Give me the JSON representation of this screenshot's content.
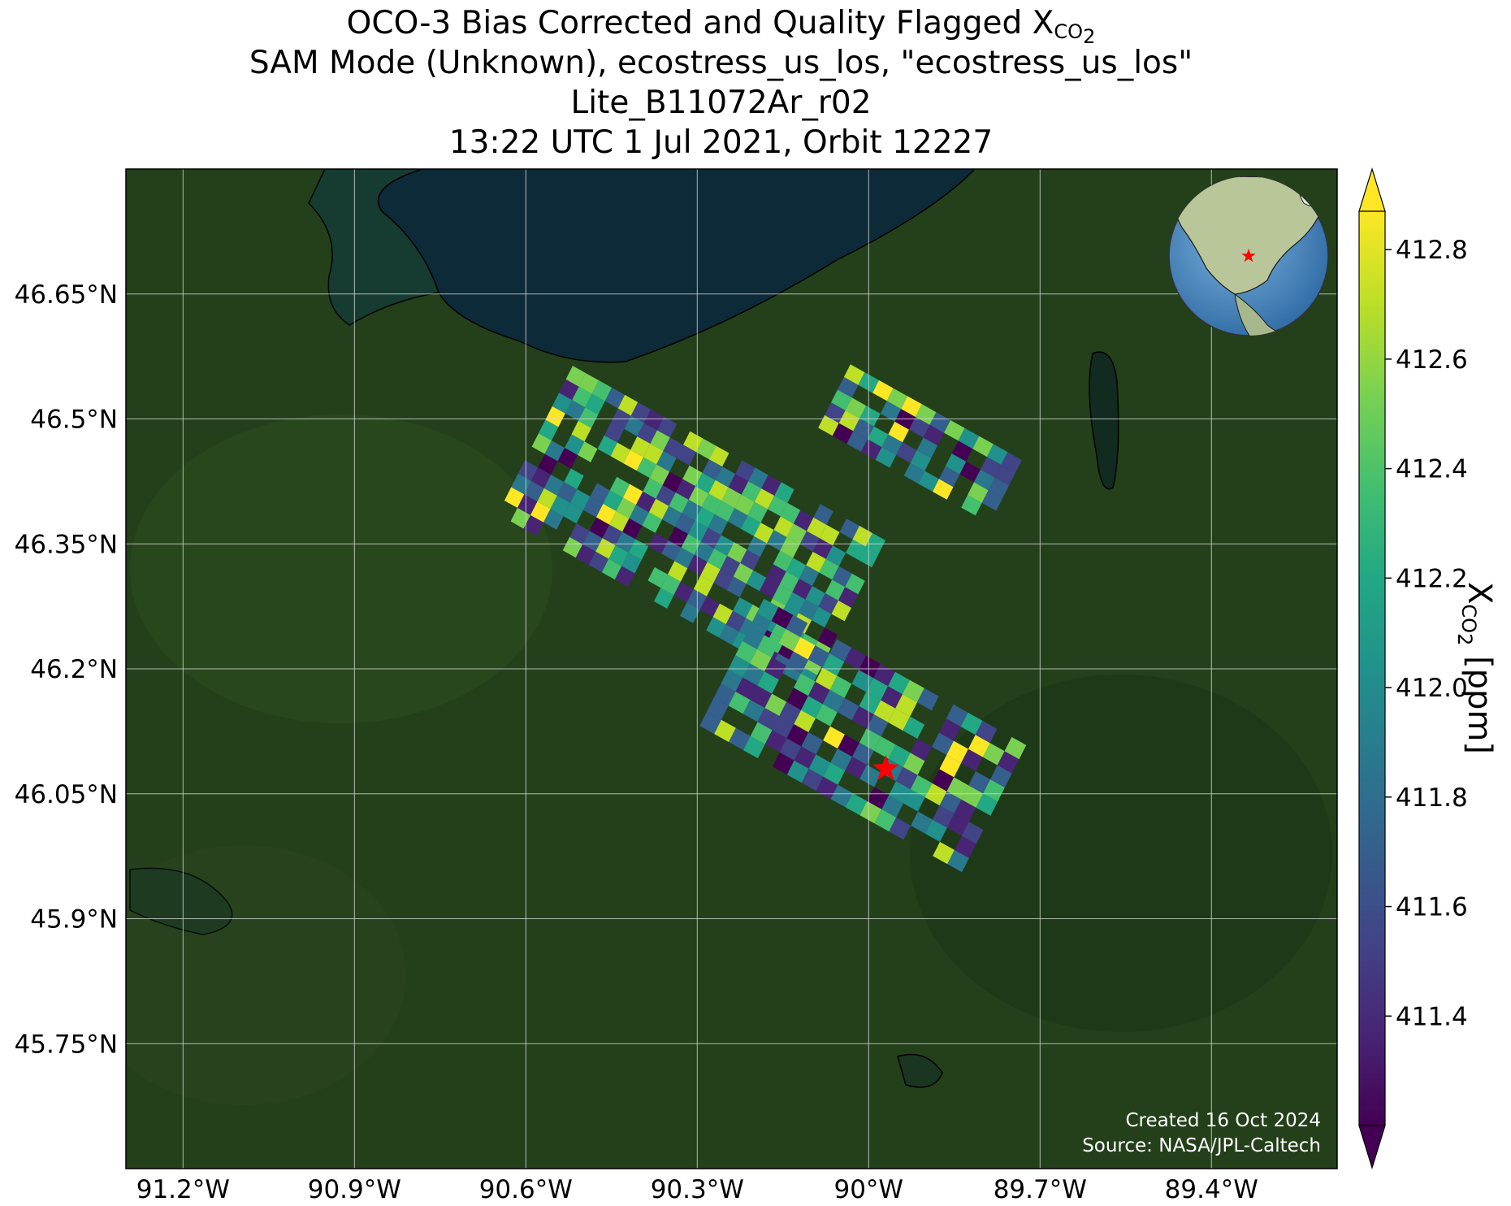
{
  "title": {
    "line1_prefix": "OCO-3 Bias Corrected and Quality Flagged X",
    "line1_sub": "CO",
    "line1_subsub": "2",
    "line2": "SAM Mode (Unknown), ecostress_us_los, \"ecostress_us_los\"",
    "line3": "Lite_B11072Ar_r02",
    "line4": "13:22 UTC 1 Jul 2021, Orbit 12227"
  },
  "map": {
    "lon_range": [
      -91.3,
      -89.18
    ],
    "lat_range": [
      45.6,
      46.8
    ],
    "lon_ticks": [
      "91.2°W",
      "90.9°W",
      "90.6°W",
      "90.3°W",
      "90°W",
      "89.7°W",
      "89.4°W"
    ],
    "lon_tick_values": [
      -91.2,
      -90.9,
      -90.6,
      -90.3,
      -90.0,
      -89.7,
      -89.4
    ],
    "lat_ticks": [
      "46.65°N",
      "46.5°N",
      "46.35°N",
      "46.2°N",
      "46.05°N",
      "45.9°N",
      "45.75°N"
    ],
    "lat_tick_values": [
      46.65,
      46.5,
      46.35,
      46.2,
      46.05,
      45.9,
      45.75
    ],
    "gridlines": true,
    "background": "satellite imagery, forested land with Lake Superior at top",
    "target_marker": {
      "lon": -89.97,
      "lat": 46.08,
      "symbol": "star",
      "color": "#ff0000"
    },
    "inset_globe": {
      "position": "top-right",
      "marker_color": "#ff0000"
    }
  },
  "credits": {
    "created": "Created 16 Oct 2024",
    "source": "Source: NASA/JPL-Caltech"
  },
  "colorbar": {
    "label_prefix": "X",
    "label_sub": "CO",
    "label_subsub": "2",
    "label_suffix": " [ppm]",
    "colormap": "viridis",
    "vmin": 411.2,
    "vmax": 412.87,
    "ticks": [
      "412.8",
      "412.6",
      "412.4",
      "412.2",
      "412.0",
      "411.8",
      "411.6",
      "411.4"
    ],
    "tick_values": [
      412.8,
      412.6,
      412.4,
      412.2,
      412.0,
      411.8,
      411.6,
      411.4
    ],
    "extend": "both"
  },
  "chart_data": {
    "type": "heatmap",
    "variable": "XCO2",
    "units": "ppm",
    "value_range": [
      411.2,
      412.87
    ],
    "swaths": [
      {
        "center": [
          -90.31,
          46.37
        ],
        "length_deg": 0.62,
        "width_deg": 0.28,
        "angle_deg": 28,
        "rows": 11,
        "cols": 24
      },
      {
        "center": [
          -89.91,
          46.47
        ],
        "length_deg": 0.34,
        "width_deg": 0.12,
        "angle_deg": 28,
        "rows": 5,
        "cols": 12
      },
      {
        "center": [
          -90.01,
          46.12
        ],
        "length_deg": 0.52,
        "width_deg": 0.24,
        "angle_deg": 28,
        "rows": 9,
        "cols": 18
      }
    ]
  }
}
